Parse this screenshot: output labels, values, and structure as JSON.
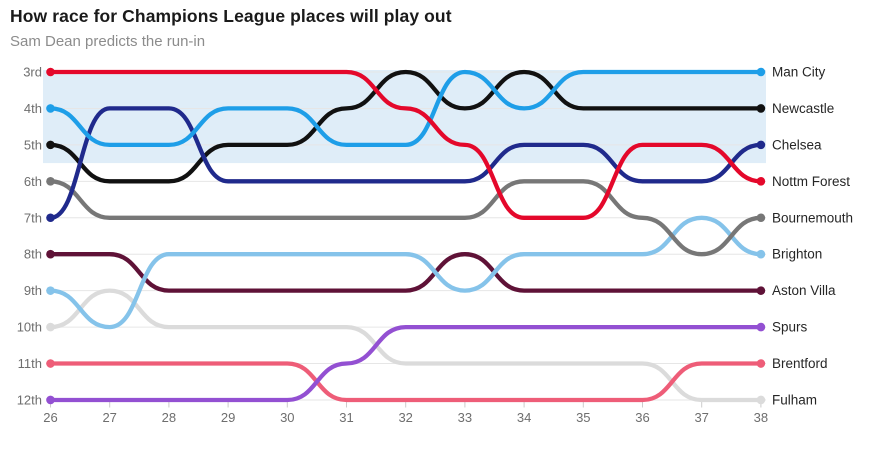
{
  "header": {
    "title": "How race for Champions League places will play out",
    "subtitle": "Sam Dean predicts the run-in"
  },
  "chart_data": {
    "type": "line",
    "subtype": "bump-rank-chart",
    "x": [
      26,
      27,
      28,
      29,
      30,
      31,
      32,
      33,
      34,
      35,
      36,
      37,
      38
    ],
    "x_axis_labels": [
      "26",
      "27",
      "28",
      "29",
      "30",
      "31",
      "32",
      "33",
      "34",
      "35",
      "36",
      "37",
      "38"
    ],
    "y_axis_labels": [
      "3rd",
      "4th",
      "5th",
      "6th",
      "7th",
      "8th",
      "9th",
      "10th",
      "11th",
      "12th"
    ],
    "y_positions": [
      3,
      4,
      5,
      6,
      7,
      8,
      9,
      10,
      11,
      12
    ],
    "ylim": [
      3,
      12
    ],
    "grid": "horizontal",
    "legend_position": "right-of-lines",
    "highlight_band": {
      "covers_positions": "3rd to 5th",
      "color": "#dfedf8"
    },
    "colors": {
      "grid": "#e6e6e6",
      "tick": "#cccccc",
      "axis_text": "#6e6e6e",
      "team_label_text": "#262626"
    },
    "series": [
      {
        "name": "Man City",
        "color": "#1e9ee8",
        "values": [
          4,
          5,
          5,
          4,
          4,
          5,
          5,
          3,
          4,
          3,
          3,
          3,
          3
        ]
      },
      {
        "name": "Newcastle",
        "color": "#111111",
        "values": [
          5,
          6,
          6,
          5,
          5,
          4,
          3,
          4,
          3,
          4,
          4,
          4,
          4
        ]
      },
      {
        "name": "Chelsea",
        "color": "#202a8c",
        "values": [
          7,
          4,
          4,
          6,
          6,
          6,
          6,
          6,
          5,
          5,
          6,
          6,
          5
        ]
      },
      {
        "name": "Nottm Forest",
        "color": "#e4082b",
        "values": [
          3,
          3,
          3,
          3,
          3,
          3,
          4,
          5,
          7,
          7,
          5,
          5,
          6
        ]
      },
      {
        "name": "Bournemouth",
        "color": "#777777",
        "values": [
          6,
          7,
          7,
          7,
          7,
          7,
          7,
          7,
          6,
          6,
          7,
          8,
          7
        ]
      },
      {
        "name": "Brighton",
        "color": "#85c3ea",
        "values": [
          9,
          10,
          8,
          8,
          8,
          8,
          8,
          9,
          8,
          8,
          8,
          7,
          8
        ]
      },
      {
        "name": "Aston Villa",
        "color": "#5f1237",
        "values": [
          8,
          8,
          9,
          9,
          9,
          9,
          9,
          8,
          9,
          9,
          9,
          9,
          9
        ]
      },
      {
        "name": "Spurs",
        "color": "#9350d2",
        "values": [
          12,
          12,
          12,
          12,
          12,
          11,
          10,
          10,
          10,
          10,
          10,
          10,
          10
        ]
      },
      {
        "name": "Brentford",
        "color": "#ee5d78",
        "values": [
          11,
          11,
          11,
          11,
          11,
          12,
          12,
          12,
          12,
          12,
          12,
          11,
          11
        ]
      },
      {
        "name": "Fulham",
        "color": "#dbdbdb",
        "values": [
          10,
          9,
          10,
          10,
          10,
          10,
          11,
          11,
          11,
          11,
          11,
          12,
          12
        ]
      }
    ]
  }
}
